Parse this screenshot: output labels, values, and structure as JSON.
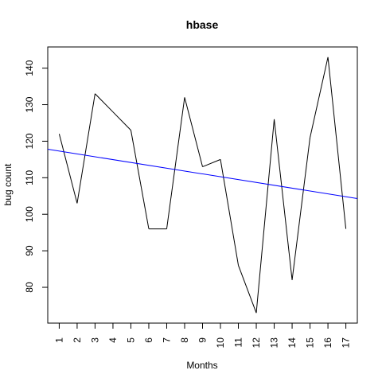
{
  "chart_data": {
    "type": "line",
    "title": "hbase",
    "xlabel": "Months",
    "ylabel": "bug count",
    "x": [
      1,
      2,
      3,
      4,
      5,
      6,
      7,
      8,
      9,
      10,
      11,
      12,
      13,
      14,
      15,
      16,
      17
    ],
    "x_tick_labels": [
      "1",
      "2",
      "3",
      "4",
      "5",
      "6",
      "7",
      "8",
      "9",
      "10",
      "11",
      "12",
      "13",
      "14",
      "15",
      "16",
      "17"
    ],
    "y_ticks": [
      80,
      90,
      100,
      110,
      120,
      130,
      140
    ],
    "xlim": [
      0.36,
      17.64
    ],
    "ylim": [
      70.2,
      145.8
    ],
    "grid": false,
    "legend": "none",
    "series": [
      {
        "values": [
          122,
          103,
          133,
          128,
          123,
          96,
          96,
          132,
          113,
          115,
          86,
          73,
          126,
          82,
          121,
          143,
          96
        ],
        "color": "#000000"
      }
    ],
    "trend_line": {
      "start": [
        0.36,
        117.8
      ],
      "end": [
        17.64,
        104.3
      ],
      "color": "#0000ff"
    }
  }
}
